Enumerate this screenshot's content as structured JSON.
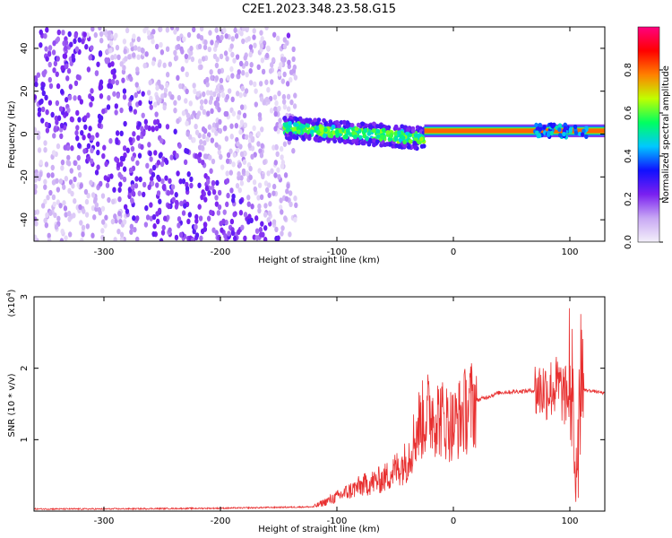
{
  "title": "C2E1.2023.348.23.58.G15",
  "chart_data": [
    {
      "type": "heatmap",
      "xlabel": "Height of straight line (km)",
      "ylabel": "Frequency (Hz)",
      "xlim": [
        -360,
        130
      ],
      "ylim": [
        -50,
        50
      ],
      "x_ticks": [
        -300,
        -200,
        -100,
        0,
        100
      ],
      "y_ticks": [
        -40,
        -20,
        0,
        20,
        40
      ],
      "colorbar": {
        "label": "Normalized spectral amplitude",
        "range": [
          0,
          1
        ],
        "ticks": [
          "0.0",
          "0.2",
          "0.4",
          "0.6",
          "0.8"
        ],
        "colors": [
          "#f4f0fa",
          "#c8a8f4",
          "#7a20f0",
          "#1010ff",
          "#00c8ff",
          "#00ff60",
          "#c0ff00",
          "#ff8000",
          "#ff0000",
          "#ff0080"
        ]
      },
      "regions": [
        {
          "description": "diffuse purple scatter",
          "x": [
            -360,
            -135
          ],
          "y": [
            -50,
            50
          ],
          "amplitude": 0.12
        },
        {
          "description": "band with strong features",
          "x": [
            -145,
            -25
          ],
          "y": [
            -10,
            8
          ],
          "amplitude": 0.45
        },
        {
          "description": "narrow line",
          "x": [
            -25,
            130
          ],
          "y": [
            0,
            3
          ],
          "amplitude": 0.8
        }
      ]
    },
    {
      "type": "line",
      "xlabel": "Height of straight line (km)",
      "ylabel": "SNR (10 * v/v)",
      "y_multiplier": "(x10",
      "y_multiplier_exp": "4",
      "y_multiplier_close": ")",
      "xlim": [
        -360,
        130
      ],
      "ylim": [
        0,
        3
      ],
      "x_ticks": [
        -300,
        -200,
        -100,
        0,
        100
      ],
      "y_ticks": [
        1,
        2,
        3
      ],
      "color": "#e83030",
      "series": [
        {
          "x": [
            -360,
            -300,
            -200,
            -120,
            -100,
            -80,
            -60,
            -40,
            -30,
            -20,
            -10,
            0,
            10,
            20,
            40,
            60,
            80,
            90,
            100,
            105,
            110,
            120,
            130
          ],
          "y": [
            0.03,
            0.03,
            0.04,
            0.06,
            0.2,
            0.35,
            0.45,
            0.7,
            1.2,
            1.4,
            1.3,
            1.2,
            1.4,
            1.55,
            1.66,
            1.68,
            1.7,
            1.75,
            1.5,
            0.6,
            1.7,
            1.68,
            1.65
          ]
        }
      ]
    }
  ]
}
